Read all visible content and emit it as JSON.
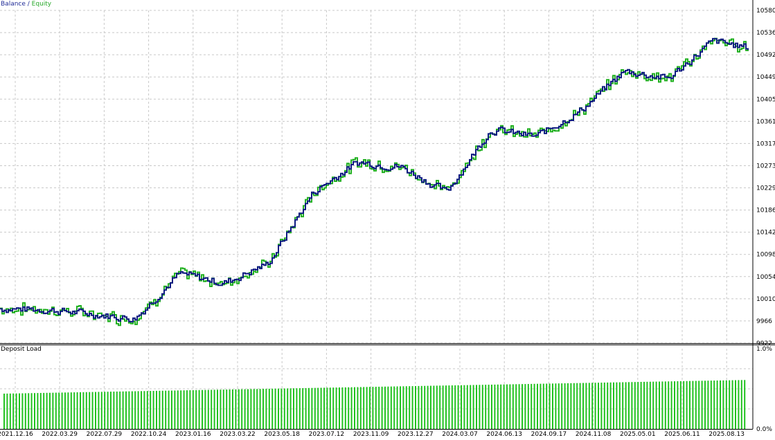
{
  "legend": {
    "balance": "Balance",
    "separator": " / ",
    "equity": "Equity"
  },
  "lower_panel": {
    "title": "Deposit Load"
  },
  "colors": {
    "balance": "#0d1b80",
    "equity": "#21b020",
    "grid": "#c8c8c8",
    "bars": "#21c21f"
  },
  "chart_data": [
    {
      "type": "line",
      "title": "",
      "series": [
        {
          "name": "Balance",
          "color": "#0d1b80"
        },
        {
          "name": "Equity",
          "color": "#21b020"
        }
      ],
      "y_ticks": [
        "10580",
        "10536",
        "10492",
        "10449",
        "10405",
        "10361",
        "10317",
        "10273",
        "10229",
        "10186",
        "10142",
        "10098",
        "10054",
        "10010",
        "9966",
        "9922"
      ],
      "ylim": [
        9922,
        10580
      ],
      "x_ticks": [
        "2021.12.16",
        "2022.03.29",
        "2022.07.29",
        "2022.10.24",
        "2023.01.16",
        "2023.03.22",
        "2023.05.18",
        "2023.07.12",
        "2023.11.09",
        "2023.12.27",
        "2024.03.07",
        "2024.06.13",
        "2024.09.17",
        "2024.11.08",
        "2025.05.01",
        "2025.06.11",
        "2025.08.13"
      ],
      "key_points": [
        {
          "x": "2021.12.16",
          "balance": 9990
        },
        {
          "x": "2022.03.29",
          "balance": 9988
        },
        {
          "x": "2022.07.29",
          "balance": 9980
        },
        {
          "x": "2022.10.24",
          "balance": 9970
        },
        {
          "x": "2023.01.16",
          "balance": 10060
        },
        {
          "x": "2023.03.22",
          "balance": 10040
        },
        {
          "x": "2023.05.18",
          "balance": 10080
        },
        {
          "x": "2023.07.12",
          "balance": 10220
        },
        {
          "x": "2023.11.09",
          "balance": 10280
        },
        {
          "x": "2023.12.27",
          "balance": 10270
        },
        {
          "x": "2024.03.07",
          "balance": 10220
        },
        {
          "x": "2024.06.13",
          "balance": 10345
        },
        {
          "x": "2024.09.17",
          "balance": 10330
        },
        {
          "x": "2024.11.08",
          "balance": 10380
        },
        {
          "x": "2025.05.01",
          "balance": 10460
        },
        {
          "x": "2025.06.11",
          "balance": 10445
        },
        {
          "x": "2025.08.13",
          "balance": 10520
        },
        {
          "x": "end",
          "balance": 10505
        }
      ],
      "grid": true
    },
    {
      "type": "bar",
      "title": "Deposit Load",
      "y_ticks": [
        "1.0%",
        "0.0%"
      ],
      "ylim": [
        0,
        1.0
      ],
      "start_load": 0.44,
      "end_load": 0.61,
      "grid": true
    }
  ]
}
